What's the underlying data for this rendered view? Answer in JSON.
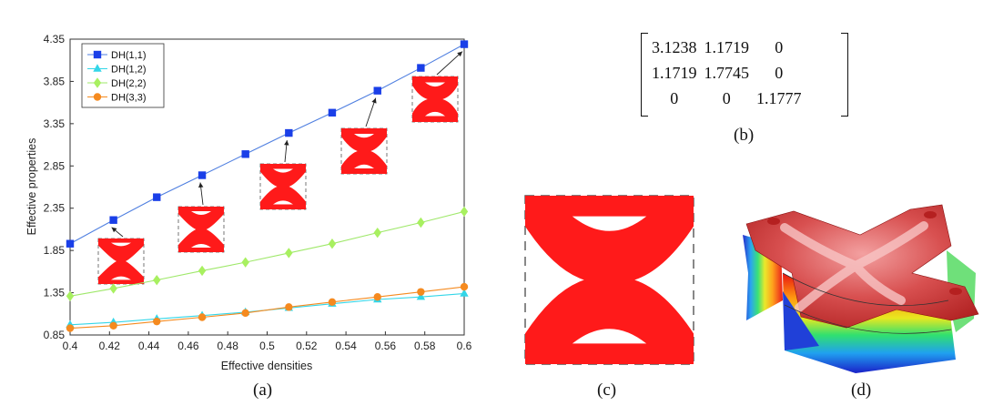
{
  "chart_data": {
    "type": "line",
    "xlabel": "Effective densities",
    "ylabel": "Effective properties",
    "xlim": [
      0.4,
      0.6
    ],
    "ylim": [
      0.85,
      4.35
    ],
    "xticks": [
      "0.4",
      "0.42",
      "0.44",
      "0.46",
      "0.48",
      "0.5",
      "0.52",
      "0.54",
      "0.56",
      "0.58",
      "0.6"
    ],
    "yticks": [
      "0.85",
      "1.35",
      "1.85",
      "2.35",
      "2.85",
      "3.35",
      "3.85",
      "4.35"
    ],
    "x": [
      0.4,
      0.422,
      0.444,
      0.467,
      0.489,
      0.511,
      0.533,
      0.556,
      0.578,
      0.6
    ],
    "series": [
      {
        "name": "DH(1,1)",
        "color": "#1a3fe8",
        "line_color": "#4f7fe0",
        "marker": "square",
        "values": [
          1.93,
          2.21,
          2.48,
          2.74,
          2.99,
          3.24,
          3.48,
          3.74,
          4.01,
          4.29
        ]
      },
      {
        "name": "DH(1,2)",
        "color": "#33d6e8",
        "line_color": "#33d6e8",
        "marker": "triangle",
        "values": [
          0.97,
          1.0,
          1.04,
          1.08,
          1.12,
          1.17,
          1.22,
          1.27,
          1.3,
          1.34
        ]
      },
      {
        "name": "DH(2,2)",
        "color": "#a8f060",
        "line_color": "#9fe86a",
        "marker": "diamond",
        "values": [
          1.31,
          1.4,
          1.5,
          1.61,
          1.71,
          1.82,
          1.93,
          2.06,
          2.18,
          2.31
        ]
      },
      {
        "name": "DH(3,3)",
        "color": "#f58a1f",
        "line_color": "#f58a1f",
        "marker": "circle",
        "values": [
          0.93,
          0.96,
          1.01,
          1.06,
          1.11,
          1.18,
          1.24,
          1.3,
          1.36,
          1.42
        ]
      }
    ],
    "legend": "top-left",
    "grid": false
  },
  "matrix": {
    "rows": [
      [
        "3.1238",
        "1.1719",
        "0"
      ],
      [
        "1.1719",
        "1.7745",
        "0"
      ],
      [
        "0",
        "0",
        "1.1777"
      ]
    ]
  },
  "captions": {
    "a": "(a)",
    "b": "(b)",
    "c": "(c)",
    "d": "(d)"
  },
  "colors": {
    "structure": "#ff1a1a",
    "dash": "#444444"
  }
}
